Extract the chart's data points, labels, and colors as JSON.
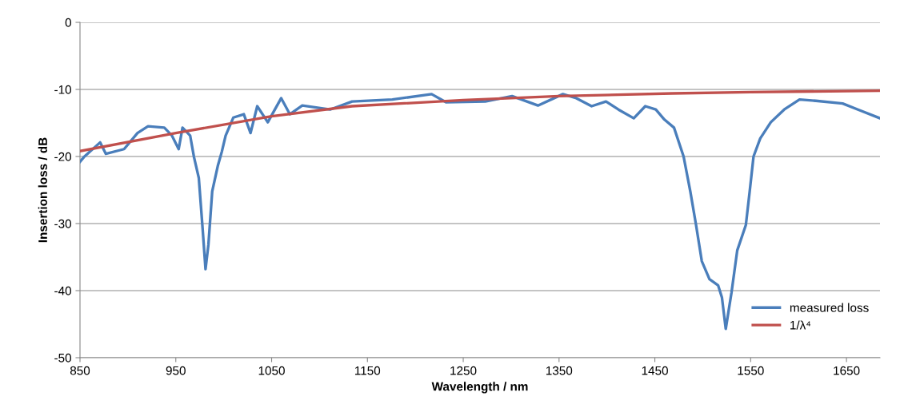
{
  "chart_data": {
    "type": "line",
    "xlabel": "Wavelength / nm",
    "ylabel": "Insertion loss / dB",
    "xlim": [
      850,
      1685
    ],
    "xticks": [
      850,
      950,
      1050,
      1150,
      1250,
      1350,
      1450,
      1550,
      1650
    ],
    "ylim": [
      -50,
      0
    ],
    "yticks": [
      -50,
      -40,
      -30,
      -20,
      -10,
      0
    ],
    "grid": "y",
    "legend": "right",
    "marker": "none",
    "line_style": "solid",
    "series": [
      {
        "name": "measured loss",
        "color": "#4a7ebb",
        "x": [
          850,
          854,
          871,
          877,
          896,
          910,
          921,
          938,
          946,
          953,
          957,
          965,
          969,
          974,
          978,
          981,
          984,
          988,
          994,
          998,
          1002,
          1010,
          1021,
          1028,
          1035,
          1046,
          1060,
          1069,
          1082,
          1111,
          1134,
          1176,
          1217,
          1232,
          1273,
          1301,
          1328,
          1354,
          1368,
          1384,
          1399,
          1412,
          1428,
          1440,
          1451,
          1460,
          1470,
          1480,
          1487,
          1493,
          1499,
          1507,
          1516,
          1520,
          1524,
          1530,
          1536,
          1545,
          1549,
          1553,
          1560,
          1571,
          1585,
          1601,
          1618,
          1646,
          1662,
          1685
        ],
        "values": [
          -20.8,
          -20.1,
          -17.9,
          -19.6,
          -18.9,
          -16.5,
          -15.5,
          -15.7,
          -16.9,
          -18.9,
          -15.7,
          -16.9,
          -20.1,
          -23.2,
          -30.8,
          -36.8,
          -33.2,
          -25.2,
          -21.3,
          -19.3,
          -16.9,
          -14.2,
          -13.7,
          -16.5,
          -12.5,
          -14.9,
          -11.3,
          -13.7,
          -12.4,
          -13,
          -11.8,
          -11.5,
          -10.7,
          -11.9,
          -11.8,
          -11,
          -12.4,
          -10.7,
          -11.3,
          -12.5,
          -11.8,
          -13,
          -14.3,
          -12.5,
          -13,
          -14.5,
          -15.7,
          -20,
          -25.2,
          -30.2,
          -35.6,
          -38.3,
          -39.2,
          -41,
          -45.7,
          -40.3,
          -34,
          -30.2,
          -25.2,
          -20,
          -17.3,
          -14.9,
          -13,
          -11.5,
          -11.7,
          -12.1,
          -13,
          -14.3
        ]
      },
      {
        "name": "1/λ⁴",
        "color": "#c0504d",
        "x": [
          850,
          950,
          1050,
          1134,
          1250,
          1350,
          1468,
          1550,
          1685
        ],
        "values": [
          -19.2,
          -16.5,
          -14,
          -12.5,
          -11.6,
          -11,
          -10.6,
          -10.4,
          -10.2
        ]
      }
    ]
  }
}
